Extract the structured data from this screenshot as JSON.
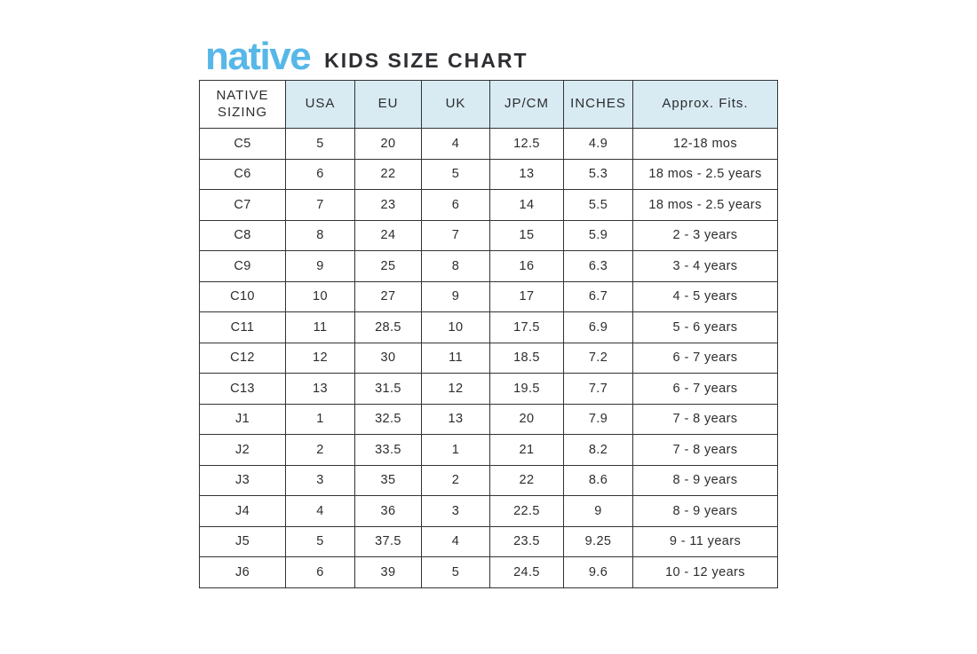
{
  "brand": {
    "logo_text": "native",
    "title": "KIDS SIZE CHART"
  },
  "colors": {
    "logo_blue": "#57b7e8",
    "header_fill": "#d8ebf3",
    "border": "#333336",
    "text": "#2d2d30"
  },
  "table": {
    "headers": [
      "NATIVE SIZING",
      "USA",
      "EU",
      "UK",
      "JP/CM",
      "INCHES",
      "Approx. Fits."
    ],
    "rows": [
      [
        "C5",
        "5",
        "20",
        "4",
        "12.5",
        "4.9",
        "12-18 mos"
      ],
      [
        "C6",
        "6",
        "22",
        "5",
        "13",
        "5.3",
        "18 mos - 2.5 years"
      ],
      [
        "C7",
        "7",
        "23",
        "6",
        "14",
        "5.5",
        "18 mos - 2.5 years"
      ],
      [
        "C8",
        "8",
        "24",
        "7",
        "15",
        "5.9",
        "2 - 3 years"
      ],
      [
        "C9",
        "9",
        "25",
        "8",
        "16",
        "6.3",
        "3 - 4 years"
      ],
      [
        "C10",
        "10",
        "27",
        "9",
        "17",
        "6.7",
        "4 - 5 years"
      ],
      [
        "C11",
        "11",
        "28.5",
        "10",
        "17.5",
        "6.9",
        "5 - 6 years"
      ],
      [
        "C12",
        "12",
        "30",
        "11",
        "18.5",
        "7.2",
        "6 - 7 years"
      ],
      [
        "C13",
        "13",
        "31.5",
        "12",
        "19.5",
        "7.7",
        "6 - 7 years"
      ],
      [
        "J1",
        "1",
        "32.5",
        "13",
        "20",
        "7.9",
        "7 - 8 years"
      ],
      [
        "J2",
        "2",
        "33.5",
        "1",
        "21",
        "8.2",
        "7 - 8 years"
      ],
      [
        "J3",
        "3",
        "35",
        "2",
        "22",
        "8.6",
        "8 - 9 years"
      ],
      [
        "J4",
        "4",
        "36",
        "3",
        "22.5",
        "9",
        "8 - 9 years"
      ],
      [
        "J5",
        "5",
        "37.5",
        "4",
        "23.5",
        "9.25",
        "9 - 11 years"
      ],
      [
        "J6",
        "6",
        "39",
        "5",
        "24.5",
        "9.6",
        "10 - 12 years"
      ]
    ]
  }
}
